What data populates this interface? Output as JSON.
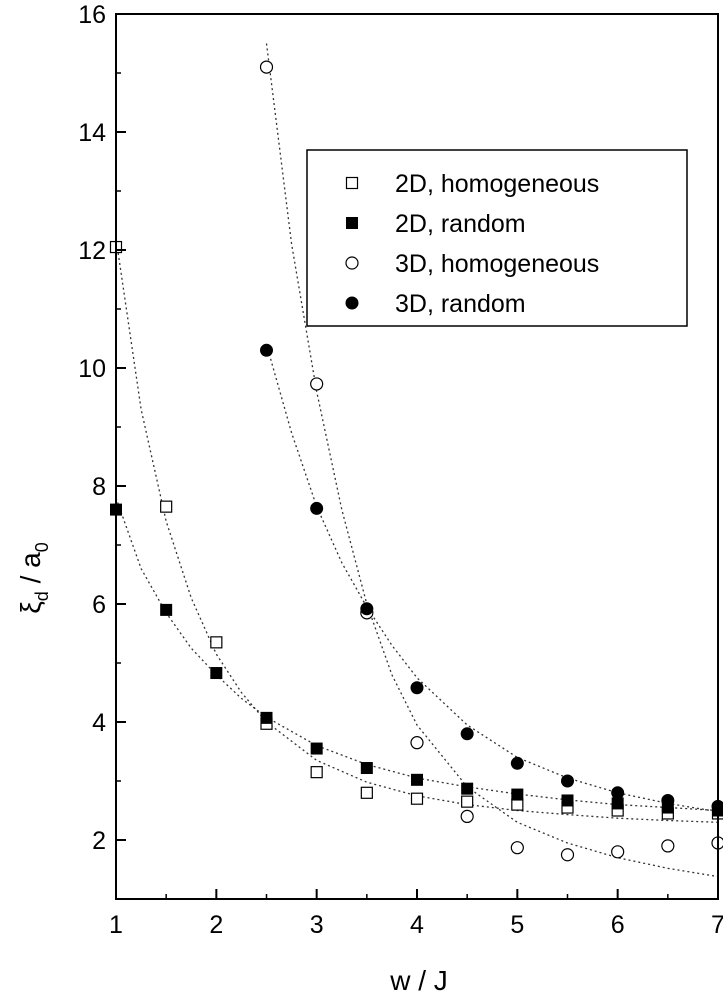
{
  "chart_data": {
    "type": "scatter",
    "xlabel": "w / J",
    "ylabel_main": "ξ",
    "ylabel_main_sub": "d",
    "ylabel_sep": " / a",
    "ylabel_sub": "0",
    "xlim": [
      1,
      7
    ],
    "ylim": [
      1,
      16
    ],
    "x_ticks": [
      1,
      2,
      3,
      4,
      5,
      6,
      7
    ],
    "y_ticks": [
      2,
      4,
      6,
      8,
      10,
      12,
      14,
      16
    ],
    "grid": false,
    "legend_position": "top-right",
    "series": [
      {
        "name": "2D, homogeneous",
        "marker": "square-open",
        "x": [
          1,
          1.5,
          2,
          2.5,
          3,
          3.5,
          4,
          4.5,
          5,
          5.5,
          6,
          6.5,
          7
        ],
        "y": [
          12.05,
          7.65,
          5.35,
          3.97,
          3.15,
          2.8,
          2.7,
          2.65,
          2.6,
          2.55,
          2.5,
          2.45,
          2.45
        ]
      },
      {
        "name": "2D, random",
        "marker": "square-filled",
        "x": [
          1,
          1.5,
          2,
          2.5,
          3,
          3.5,
          4,
          4.5,
          5,
          5.5,
          6,
          6.5,
          7
        ],
        "y": [
          7.6,
          5.9,
          4.83,
          4.07,
          3.55,
          3.22,
          3.02,
          2.87,
          2.77,
          2.67,
          2.62,
          2.55,
          2.5
        ]
      },
      {
        "name": "3D, homogeneous",
        "marker": "circle-open",
        "x": [
          2.5,
          3,
          3.5,
          4,
          4.5,
          5,
          5.5,
          6,
          6.5,
          7
        ],
        "y": [
          15.1,
          9.73,
          5.85,
          3.65,
          2.4,
          1.87,
          1.75,
          1.8,
          1.9,
          1.95
        ]
      },
      {
        "name": "3D, random",
        "marker": "circle-filled",
        "x": [
          2.5,
          3,
          3.5,
          4,
          4.5,
          5,
          5.5,
          6,
          6.5,
          7
        ],
        "y": [
          10.3,
          7.62,
          5.92,
          4.58,
          3.8,
          3.3,
          3.0,
          2.8,
          2.67,
          2.57
        ]
      }
    ],
    "fit_curves": [
      {
        "style": "dotted",
        "x": [
          1,
          1.25,
          1.5,
          1.75,
          2,
          2.25,
          2.5,
          3,
          3.5,
          4,
          4.5,
          5,
          5.5,
          6,
          6.5,
          7
        ],
        "y": [
          12.2,
          9.3,
          7.4,
          6.1,
          5.15,
          4.5,
          4.0,
          3.35,
          2.98,
          2.75,
          2.6,
          2.5,
          2.43,
          2.37,
          2.33,
          2.3
        ]
      },
      {
        "style": "dotted",
        "x": [
          1,
          1.25,
          1.5,
          1.75,
          2,
          2.25,
          2.5,
          3,
          3.5,
          4,
          4.5,
          5,
          5.5,
          6,
          6.5,
          7
        ],
        "y": [
          7.8,
          6.6,
          5.85,
          5.25,
          4.8,
          4.4,
          4.08,
          3.6,
          3.28,
          3.05,
          2.9,
          2.78,
          2.68,
          2.6,
          2.55,
          2.5
        ]
      },
      {
        "style": "dotted",
        "x": [
          2.5,
          2.75,
          3,
          3.25,
          3.5,
          3.75,
          4,
          4.5,
          5,
          5.5,
          6,
          6.5,
          7
        ],
        "y": [
          15.5,
          12.1,
          9.6,
          7.6,
          6.0,
          4.8,
          3.95,
          2.9,
          2.3,
          1.95,
          1.7,
          1.52,
          1.38
        ]
      },
      {
        "style": "dotted",
        "x": [
          2.5,
          2.75,
          3,
          3.25,
          3.5,
          3.75,
          4,
          4.5,
          5,
          5.5,
          6,
          6.5,
          7
        ],
        "y": [
          10.4,
          8.9,
          7.65,
          6.7,
          5.95,
          5.3,
          4.75,
          3.95,
          3.4,
          3.05,
          2.8,
          2.62,
          2.48
        ]
      }
    ]
  }
}
